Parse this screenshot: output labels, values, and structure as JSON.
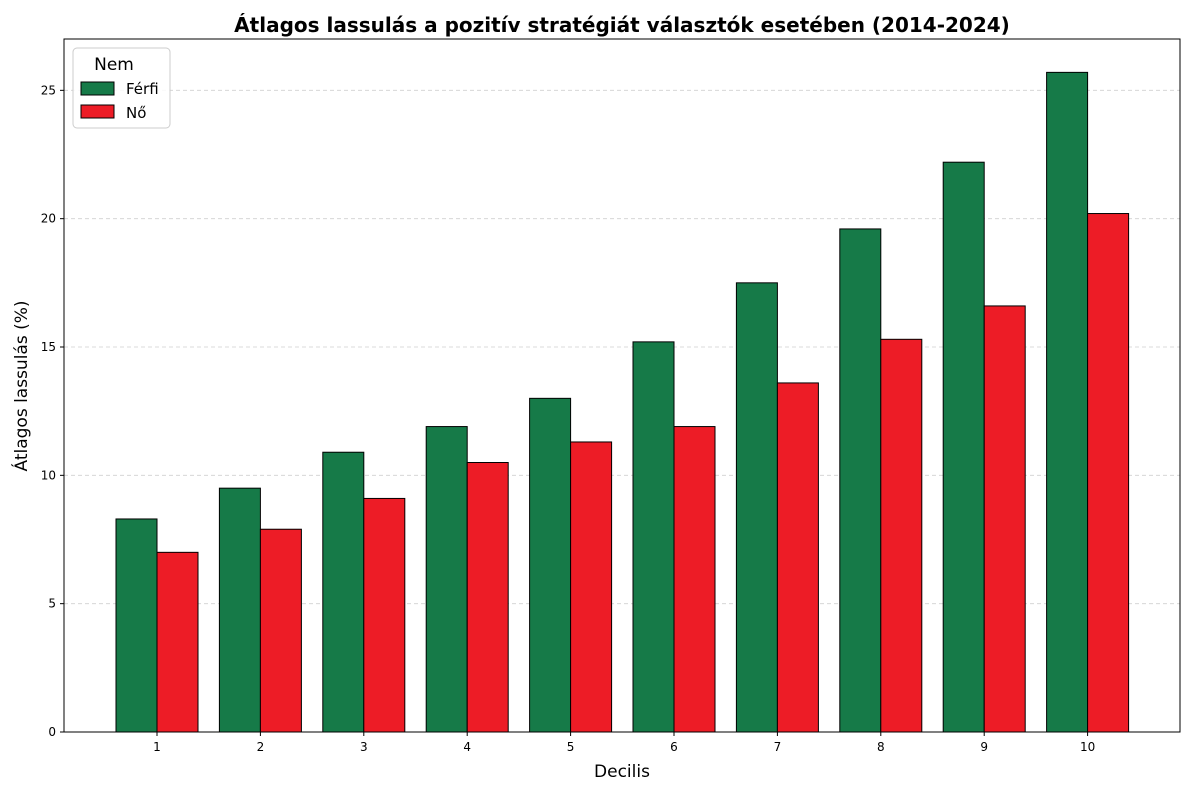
{
  "chart_data": {
    "type": "bar",
    "title": "Átlagos lassulás a pozitív stratégiát választók esetében (2014-2024)",
    "xlabel": "Decilis",
    "ylabel": "Átlagos lassulás (%)",
    "categories": [
      "1",
      "2",
      "3",
      "4",
      "5",
      "6",
      "7",
      "8",
      "9",
      "10"
    ],
    "series": [
      {
        "name": "Férfi",
        "color": "#167a48",
        "values": [
          8.3,
          9.5,
          10.9,
          11.9,
          13.0,
          15.2,
          17.5,
          19.6,
          22.2,
          25.7
        ]
      },
      {
        "name": "Nő",
        "color": "#ed1c26",
        "values": [
          7.0,
          7.9,
          9.1,
          10.5,
          11.3,
          11.9,
          13.6,
          15.3,
          16.6,
          20.2
        ]
      }
    ],
    "ylim": [
      0,
      27
    ],
    "yticks": [
      0,
      5,
      10,
      15,
      20,
      25
    ],
    "grid": "y-dashed",
    "legend": {
      "title": "Nem",
      "position": "top-left"
    }
  }
}
